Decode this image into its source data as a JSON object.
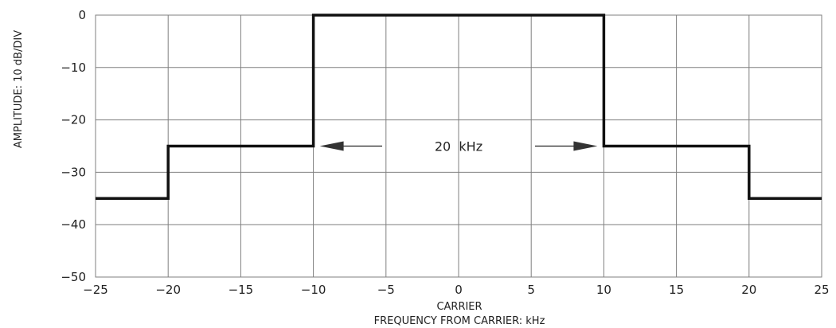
{
  "chart_data": {
    "type": "line",
    "title": "",
    "xlabel": "FREQUENCY FROM CARRIER: kHz",
    "xlabel_center_tick": "CARRIER",
    "ylabel": "AMPLITUDE: 10 dB/DIV",
    "xlim": [
      -25,
      25
    ],
    "ylim": [
      -50,
      0
    ],
    "xticks": [
      -25,
      -20,
      -15,
      -10,
      -5,
      0,
      5,
      10,
      15,
      20,
      25
    ],
    "yticks": [
      0,
      -10,
      -20,
      -30,
      -40,
      -50
    ],
    "grid": true,
    "series": [
      {
        "x": [
          -25,
          -20,
          -20,
          -10,
          -10,
          10,
          10,
          20,
          20,
          25
        ],
        "y": [
          -35,
          -35,
          -25,
          -25,
          0,
          0,
          -25,
          -25,
          -35,
          -35
        ]
      }
    ],
    "annotations": [
      {
        "text": "20  kHz",
        "x_from": -10,
        "x_to": 10,
        "y": -25
      }
    ]
  }
}
